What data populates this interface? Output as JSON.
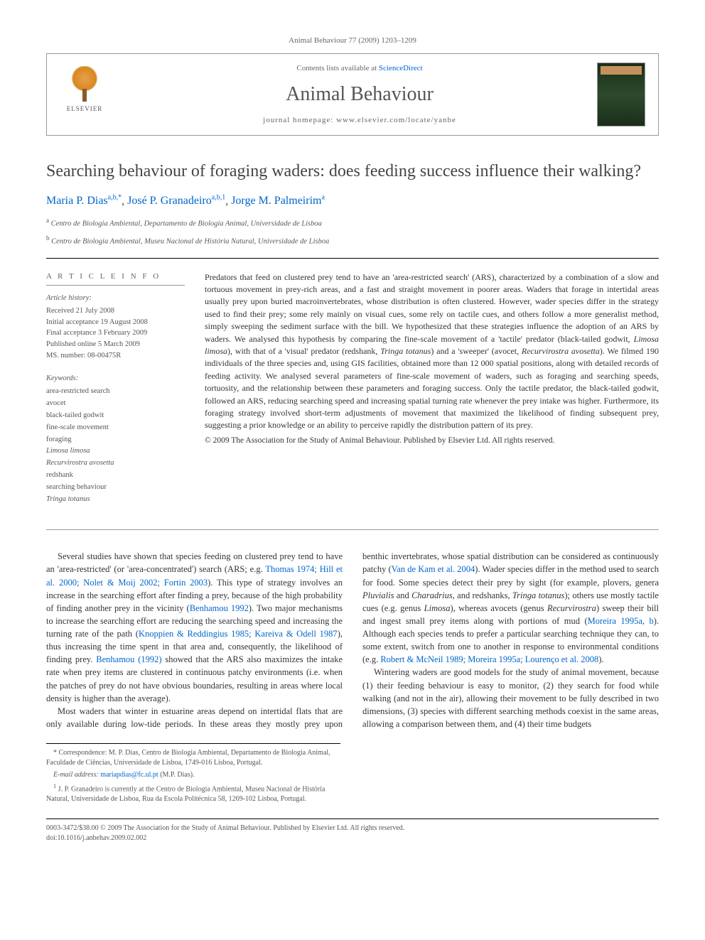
{
  "running_head": "Animal Behaviour 77 (2009) 1203–1209",
  "header": {
    "publisher": "ELSEVIER",
    "contents_prefix": "Contents lists available at ",
    "contents_link": "ScienceDirect",
    "journal": "Animal Behaviour",
    "homepage_prefix": "journal homepage: ",
    "homepage_url": "www.elsevier.com/locate/yanbe",
    "cover_label": "ANIMAL BEHAVIOUR"
  },
  "title": "Searching behaviour of foraging waders: does feeding success influence their walking?",
  "authors": [
    {
      "name": "Maria P. Dias",
      "affil": "a,b,",
      "mark": "*"
    },
    {
      "name": "José P. Granadeiro",
      "affil": "a,b,",
      "mark": "1"
    },
    {
      "name": "Jorge M. Palmeirim",
      "affil": "a",
      "mark": ""
    }
  ],
  "affiliations": [
    {
      "sup": "a",
      "text": "Centro de Biologia Ambiental, Departamento de Biologia Animal, Universidade de Lisboa"
    },
    {
      "sup": "b",
      "text": "Centro de Biologia Ambiental, Museu Nacional de História Natural, Universidade de Lisboa"
    }
  ],
  "article_info": {
    "heading": "A R T I C L E   I N F O",
    "history_head": "Article history:",
    "history": [
      "Received 21 July 2008",
      "Initial acceptance 19 August 2008",
      "Final acceptance 3 February 2009",
      "Published online 5 March 2009",
      "MS. number: 08-00475R"
    ],
    "keywords_head": "Keywords:",
    "keywords": [
      {
        "t": "area-restricted search",
        "i": false
      },
      {
        "t": "avocet",
        "i": false
      },
      {
        "t": "black-tailed godwit",
        "i": false
      },
      {
        "t": "fine-scale movement",
        "i": false
      },
      {
        "t": "foraging",
        "i": false
      },
      {
        "t": "Limosa limosa",
        "i": true
      },
      {
        "t": "Recurvirostra avosetta",
        "i": true
      },
      {
        "t": "redshank",
        "i": false
      },
      {
        "t": "searching behaviour",
        "i": false
      },
      {
        "t": "Tringa totanus",
        "i": true
      }
    ]
  },
  "abstract": {
    "p1a": "Predators that feed on clustered prey tend to have an 'area-restricted search' (ARS), characterized by a combination of a slow and tortuous movement in prey-rich areas, and a fast and straight movement in poorer areas. Waders that forage in intertidal areas usually prey upon buried macroinvertebrates, whose distribution is often clustered. However, wader species differ in the strategy used to find their prey; some rely mainly on visual cues, some rely on tactile cues, and others follow a more generalist method, simply sweeping the sediment surface with the bill. We hypothesized that these strategies influence the adoption of an ARS by waders. We analysed this hypothesis by comparing the fine-scale movement of a 'tactile' predator (black-tailed godwit, ",
    "sp1": "Limosa limosa",
    "p1b": "), with that of a 'visual' predator (redshank, ",
    "sp2": "Tringa totanus",
    "p1c": ") and a 'sweeper' (avocet, ",
    "sp3": "Recurvirostra avosetta",
    "p1d": "). We filmed 190 individuals of the three species and, using GIS facilities, obtained more than 12 000 spatial positions, along with detailed records of feeding activity. We analysed several parameters of fine-scale movement of waders, such as foraging and searching speeds, tortuosity, and the relationship between these parameters and foraging success. Only the tactile predator, the black-tailed godwit, followed an ARS, reducing searching speed and increasing spatial turning rate whenever the prey intake was higher. Furthermore, its foraging strategy involved short-term adjustments of movement that maximized the likelihood of finding subsequent prey, suggesting a prior knowledge or an ability to perceive rapidly the distribution pattern of its prey.",
    "copyright": "© 2009 The Association for the Study of Animal Behaviour. Published by Elsevier Ltd. All rights reserved."
  },
  "body": {
    "p1a": "Several studies have shown that species feeding on clustered prey tend to have an 'area-restricted' (or 'area-concentrated') search (ARS; e.g. ",
    "c1": "Thomas 1974; Hill et al. 2000; Nolet & Moij 2002; Fortin 2003",
    "p1b": "). This type of strategy involves an increase in the searching effort after finding a prey, because of the high probability of finding another prey in the vicinity (",
    "c2": "Benhamou 1992",
    "p1c": "). Two major mechanisms to increase the searching effort are reducing the searching speed and increasing the turning rate of the path (",
    "c3": "Knoppien & Reddingius 1985; Kareiva & Odell 1987",
    "p1d": "), thus increasing the time spent in that area and, consequently, the likelihood of finding prey. ",
    "c4": "Benhamou (1992)",
    "p1e": " showed that the ARS also maximizes the intake rate when prey items are clustered in continuous patchy environments (i.e. when the patches of prey do ",
    "p1f": "not have obvious boundaries, resulting in areas where local density is higher than the average).",
    "p2a": "Most waders that winter in estuarine areas depend on intertidal flats that are only available during low-tide periods. In these areas they mostly prey upon benthic invertebrates, whose spatial distribution can be considered as continuously patchy (",
    "c5": "Van de Kam et al. 2004",
    "p2b": "). Wader species differ in the method used to search for food. Some species detect their prey by sight (for example, plovers, genera ",
    "g1": "Pluvialis",
    "p2c": " and ",
    "g2": "Charadrius",
    "p2d": ", and redshanks, ",
    "g3": "Tringa totanus",
    "p2e": "); others use mostly tactile cues (e.g. genus ",
    "g4": "Limosa",
    "p2f": "), whereas avocets (genus ",
    "g5": "Recurvirostra",
    "p2g": ") sweep their bill and ingest small prey items along with portions of mud (",
    "c6": "Moreira 1995a, b",
    "p2h": "). Although each species tends to prefer a particular searching technique they can, to some extent, switch from one to another in response to environmental conditions (e.g. ",
    "c7": "Robert & McNeil 1989; Moreira 1995a; Lourenço et al. 2008",
    "p2i": ").",
    "p3": "Wintering waders are good models for the study of animal movement, because (1) their feeding behaviour is easy to monitor, (2) they search for food while walking (and not in the air), allowing their movement to be fully described in two dimensions, (3) species with different searching methods coexist in the same areas, allowing a comparison between them, and (4) their time budgets"
  },
  "footnotes": {
    "corr_label": "* Correspondence:",
    "corr_text": " M. P. Dias, Centro de Biologia Ambiental, Departamento de Biologia Animal, Faculdade de Ciências, Universidade de Lisboa, 1749-016 Lisboa, Portugal.",
    "email_label": "E-mail address: ",
    "email": "mariapdias@fc.ul.pt",
    "email_who": " (M.P. Dias).",
    "n1_label": "1",
    "n1_text": " J. P. Granadeiro is currently at the Centro de Biologia Ambiental, Museu Nacional de História Natural, Universidade de Lisboa, Rua da Escola Politécnica 58, 1269-102 Lisboa, Portugal."
  },
  "footer": {
    "line1": "0003-3472/$38.00 © 2009 The Association for the Study of Animal Behaviour. Published by Elsevier Ltd. All rights reserved.",
    "line2": "doi:10.1016/j.anbehav.2009.02.002"
  }
}
